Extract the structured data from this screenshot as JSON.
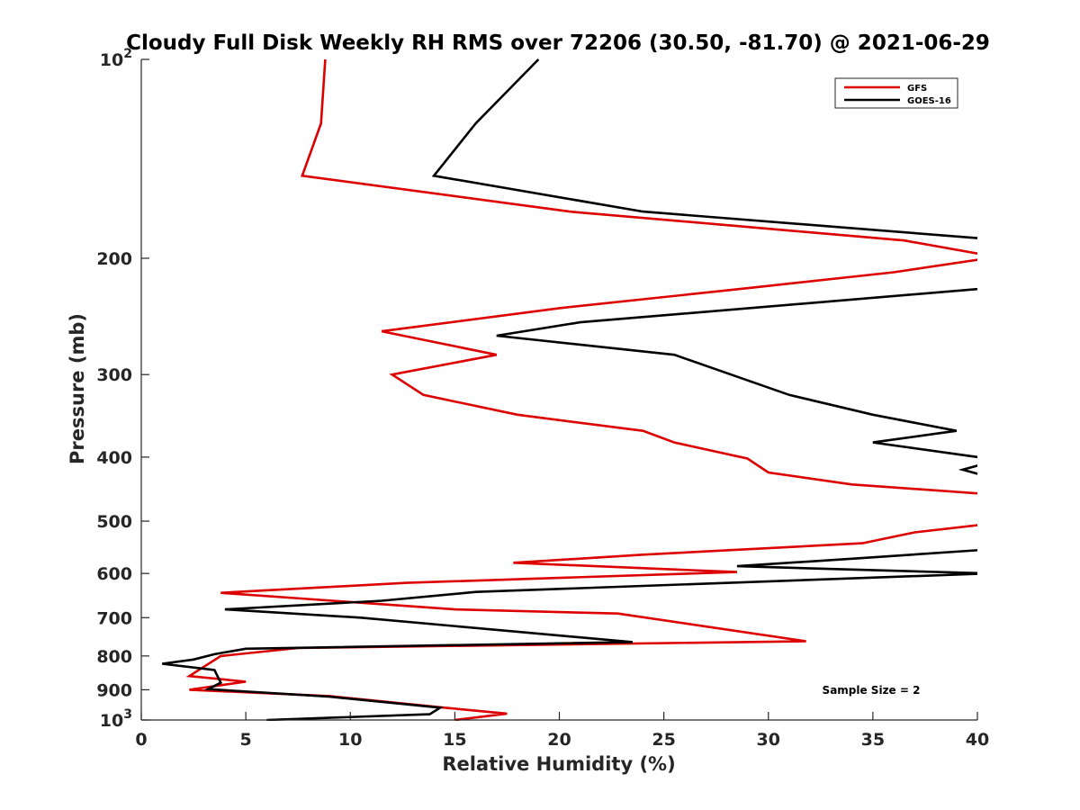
{
  "chart_data": {
    "type": "line",
    "title": "Cloudy Full Disk Weekly RH RMS over 72206 (30.50, -81.70) @ 2021-06-29",
    "xlabel": "Relative Humidity (%)",
    "ylabel": "Pressure (mb)",
    "xlim": [
      0,
      40
    ],
    "ylim": [
      100,
      1000
    ],
    "y_scale": "log",
    "y_reversed": true,
    "x_ticks": [
      0,
      5,
      10,
      15,
      20,
      25,
      30,
      35,
      40
    ],
    "x_tick_labels": [
      "0",
      "5",
      "10",
      "15",
      "20",
      "25",
      "30",
      "35",
      "40"
    ],
    "y_ticks": [
      100,
      200,
      300,
      400,
      500,
      600,
      700,
      800,
      900,
      1000
    ],
    "y_tick_labels": [
      {
        "base": "10",
        "exp": "2"
      },
      {
        "base": "200",
        "exp": ""
      },
      {
        "base": "300",
        "exp": ""
      },
      {
        "base": "400",
        "exp": ""
      },
      {
        "base": "500",
        "exp": ""
      },
      {
        "base": "600",
        "exp": ""
      },
      {
        "base": "700",
        "exp": ""
      },
      {
        "base": "800",
        "exp": ""
      },
      {
        "base": "900",
        "exp": ""
      },
      {
        "base": "10",
        "exp": "3"
      }
    ],
    "legend_position": "top-right",
    "annotation": "Sample Size = 2",
    "series": [
      {
        "name": "GFS",
        "color": "#dd0000",
        "points": [
          {
            "x": 8.8,
            "p": 100
          },
          {
            "x": 8.6,
            "p": 125
          },
          {
            "x": 7.7,
            "p": 150
          },
          {
            "x": 20.5,
            "p": 170
          },
          {
            "x": 36.5,
            "p": 188
          },
          {
            "x": 40.5,
            "p": 198
          },
          {
            "x": 40.5,
            "p": 200
          },
          {
            "x": 36,
            "p": 210
          },
          {
            "x": 29,
            "p": 222
          },
          {
            "x": 20,
            "p": 238
          },
          {
            "x": 11.5,
            "p": 258
          },
          {
            "x": 17,
            "p": 280
          },
          {
            "x": 12,
            "p": 300
          },
          {
            "x": 13.5,
            "p": 322
          },
          {
            "x": 18,
            "p": 345
          },
          {
            "x": 24,
            "p": 365
          },
          {
            "x": 25.5,
            "p": 380
          },
          {
            "x": 29,
            "p": 402
          },
          {
            "x": 30,
            "p": 422
          },
          {
            "x": 34,
            "p": 440
          },
          {
            "x": 40.5,
            "p": 455
          },
          {
            "x": 40.5,
            "p": 505
          },
          {
            "x": 37,
            "p": 520
          },
          {
            "x": 34.5,
            "p": 540
          },
          {
            "x": 24,
            "p": 562
          },
          {
            "x": 17.8,
            "p": 578
          },
          {
            "x": 28.5,
            "p": 597
          },
          {
            "x": 12.7,
            "p": 620
          },
          {
            "x": 3.8,
            "p": 642
          },
          {
            "x": 15,
            "p": 680
          },
          {
            "x": 22.8,
            "p": 690
          },
          {
            "x": 31.8,
            "p": 760
          },
          {
            "x": 7.5,
            "p": 778
          },
          {
            "x": 3.8,
            "p": 800
          },
          {
            "x": 2.3,
            "p": 858
          },
          {
            "x": 5,
            "p": 875
          },
          {
            "x": 2.3,
            "p": 900
          },
          {
            "x": 9,
            "p": 920
          },
          {
            "x": 14.5,
            "p": 958
          },
          {
            "x": 17.5,
            "p": 978
          },
          {
            "x": 15,
            "p": 1000
          }
        ]
      },
      {
        "name": "GOES-16",
        "color": "#000000",
        "points": [
          {
            "x": 19,
            "p": 100
          },
          {
            "x": 16,
            "p": 125
          },
          {
            "x": 14,
            "p": 150
          },
          {
            "x": 24,
            "p": 170
          },
          {
            "x": 40.5,
            "p": 187
          },
          {
            "x": 40.5,
            "p": 222
          },
          {
            "x": 21,
            "p": 250
          },
          {
            "x": 17,
            "p": 262
          },
          {
            "x": 25.5,
            "p": 280
          },
          {
            "x": 31,
            "p": 322
          },
          {
            "x": 35,
            "p": 345
          },
          {
            "x": 39,
            "p": 365
          },
          {
            "x": 35,
            "p": 380
          },
          {
            "x": 40.5,
            "p": 402
          },
          {
            "x": 40.5,
            "p": 408
          },
          {
            "x": 39.3,
            "p": 418
          },
          {
            "x": 40.5,
            "p": 428
          },
          {
            "x": 40.5,
            "p": 552
          },
          {
            "x": 34,
            "p": 570
          },
          {
            "x": 28.5,
            "p": 585
          },
          {
            "x": 40.5,
            "p": 600
          },
          {
            "x": 16,
            "p": 640
          },
          {
            "x": 11.5,
            "p": 660
          },
          {
            "x": 4,
            "p": 680
          },
          {
            "x": 10.5,
            "p": 700
          },
          {
            "x": 23.5,
            "p": 762
          },
          {
            "x": 5,
            "p": 780
          },
          {
            "x": 3.5,
            "p": 795
          },
          {
            "x": 2.5,
            "p": 810
          },
          {
            "x": 1,
            "p": 822
          },
          {
            "x": 3.5,
            "p": 840
          },
          {
            "x": 3.8,
            "p": 878
          },
          {
            "x": 3.2,
            "p": 898
          },
          {
            "x": 9,
            "p": 922
          },
          {
            "x": 14.3,
            "p": 958
          },
          {
            "x": 13.8,
            "p": 980
          },
          {
            "x": 6,
            "p": 1000
          }
        ]
      }
    ]
  }
}
